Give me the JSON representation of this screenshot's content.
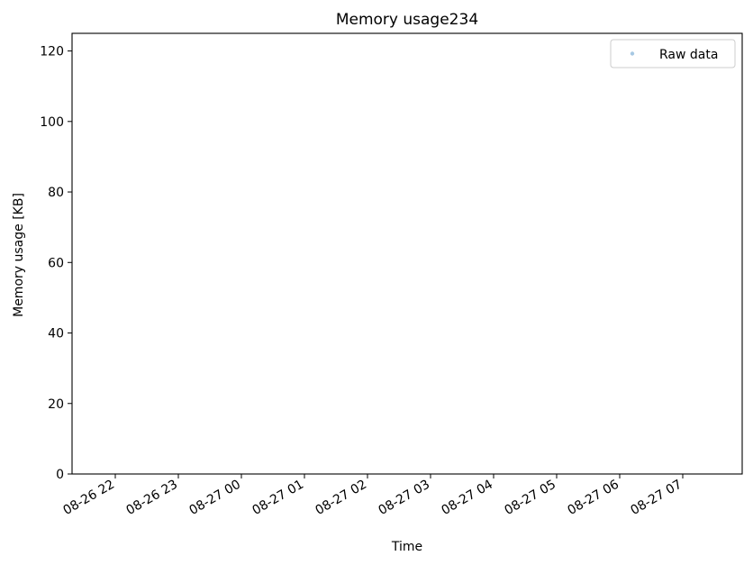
{
  "chart_data": {
    "type": "scatter",
    "title": "Memory usage234",
    "xlabel": "Time",
    "ylabel": "Memory usage [KB]",
    "ylim": [
      0,
      125
    ],
    "y_ticks": [
      0,
      20,
      40,
      60,
      80,
      100,
      120
    ],
    "x_ticks": [
      "08-26 22",
      "08-26 23",
      "08-27 00",
      "08-27 01",
      "08-27 02",
      "08-27 03",
      "08-27 04",
      "08-27 05",
      "08-27 06",
      "08-27 07"
    ],
    "series": [
      {
        "name": "Raw data",
        "color": "#a6c8e3",
        "points": []
      }
    ],
    "legend": {
      "placement": "top-right"
    },
    "grid": false
  }
}
